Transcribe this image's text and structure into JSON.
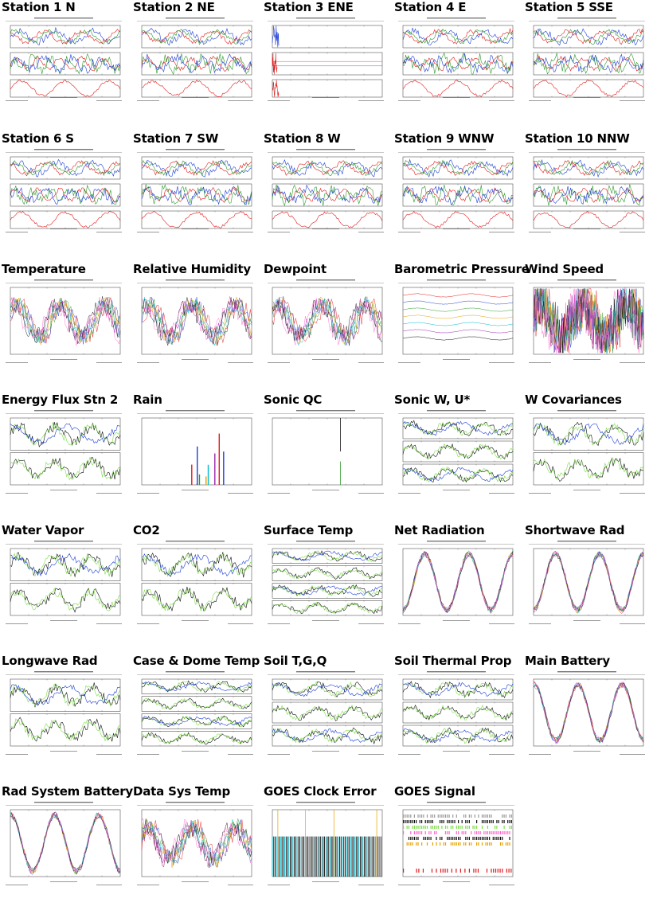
{
  "plots": [
    {
      "title": "Station 1 N",
      "kind": "station"
    },
    {
      "title": "Station 2 NE",
      "kind": "station"
    },
    {
      "title": "Station 3 ENE",
      "kind": "station3"
    },
    {
      "title": "Station 4 E",
      "kind": "station"
    },
    {
      "title": "Station 5 SSE",
      "kind": "station"
    },
    {
      "title": "Station 6 S",
      "kind": "station"
    },
    {
      "title": "Station 7 SW",
      "kind": "station"
    },
    {
      "title": "Station 8 W",
      "kind": "station"
    },
    {
      "title": "Station 9 WNW",
      "kind": "station"
    },
    {
      "title": "Station 10 NNW",
      "kind": "station"
    },
    {
      "title": "Temperature",
      "kind": "multi"
    },
    {
      "title": "Relative Humidity",
      "kind": "multi"
    },
    {
      "title": "Dewpoint",
      "kind": "multi"
    },
    {
      "title": "Barometric Pressure",
      "kind": "flat"
    },
    {
      "title": "Wind Speed",
      "kind": "noisy"
    },
    {
      "title": "Energy Flux Stn 2",
      "kind": "two"
    },
    {
      "title": "Rain",
      "kind": "rain"
    },
    {
      "title": "Sonic QC",
      "kind": "sonicqc"
    },
    {
      "title": "Sonic W, U*",
      "kind": "three"
    },
    {
      "title": "W Covariances",
      "kind": "two"
    },
    {
      "title": "Water Vapor",
      "kind": "two"
    },
    {
      "title": "CO2",
      "kind": "two"
    },
    {
      "title": "Surface Temp",
      "kind": "four"
    },
    {
      "title": "Net Radiation",
      "kind": "diurnal"
    },
    {
      "title": "Shortwave Rad",
      "kind": "diurnal"
    },
    {
      "title": "Longwave Rad",
      "kind": "two"
    },
    {
      "title": "Case & Dome Temp",
      "kind": "four"
    },
    {
      "title": "Soil T,G,Q",
      "kind": "three"
    },
    {
      "title": "Soil Thermal Prop",
      "kind": "three"
    },
    {
      "title": "Main Battery",
      "kind": "battery"
    },
    {
      "title": "Rad System Battery",
      "kind": "battery"
    },
    {
      "title": "Data Sys Temp",
      "kind": "multi"
    },
    {
      "title": "GOES Clock Error",
      "kind": "goesclock"
    },
    {
      "title": "GOES Signal",
      "kind": "goessignal"
    }
  ]
}
